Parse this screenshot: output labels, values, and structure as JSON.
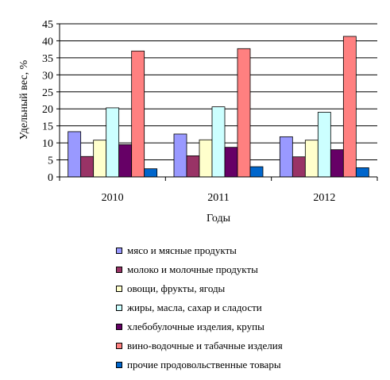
{
  "chart_data": {
    "type": "bar",
    "categories": [
      "2010",
      "2011",
      "2012"
    ],
    "series": [
      {
        "name": "мясо и мясные продукты",
        "values": [
          13.3,
          12.6,
          11.8
        ],
        "color": "#9999FF"
      },
      {
        "name": "молоко и молочные продукты",
        "values": [
          6.0,
          6.2,
          5.9
        ],
        "color": "#993366"
      },
      {
        "name": "овощи, фрукты, ягоды",
        "values": [
          10.8,
          10.9,
          10.8
        ],
        "color": "#FFFFCC"
      },
      {
        "name": "жиры, масла, сахар и сладости",
        "values": [
          20.3,
          20.6,
          19.0
        ],
        "color": "#CCFFFF"
      },
      {
        "name": "хлебобулочные изделия, крупы",
        "values": [
          9.5,
          8.7,
          8.0
        ],
        "color": "#660066"
      },
      {
        "name": "вино-водочные и табачные изделия",
        "values": [
          37.0,
          37.7,
          41.3
        ],
        "color": "#FF8080"
      },
      {
        "name": "прочие продовольственные товары",
        "values": [
          2.4,
          3.0,
          2.7
        ],
        "color": "#0066CC"
      }
    ],
    "xlabel": "Годы",
    "ylabel": "Удельный вес, %",
    "ylim": [
      0,
      45
    ],
    "yticks": [
      "0",
      "5",
      "10",
      "15",
      "20",
      "25",
      "30",
      "35",
      "40",
      "45"
    ],
    "grid": true,
    "legend_position": "bottom"
  }
}
